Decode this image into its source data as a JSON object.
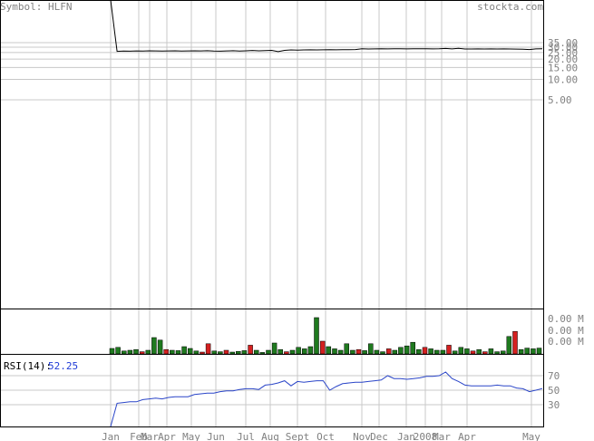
{
  "header": {
    "symbol_label": "Symbol: HLFN",
    "site": "stockta.com"
  },
  "colors": {
    "price_line": "#000000",
    "grid": "#c8c8c8",
    "border": "#000000",
    "volume_up": "#1f7a1f",
    "volume_down": "#d42020",
    "rsi_line": "#2a45c8",
    "label_gray": "#808080"
  },
  "chart_data": [
    {
      "type": "line",
      "panel": "price",
      "scale": "log",
      "y_ticks": [
        "35.00",
        "30.00",
        "25.00",
        "20.00",
        "15.00",
        "10.00",
        "5.00"
      ],
      "x_months": [
        "Jan",
        "Feb",
        "Mar",
        "Apr",
        "May",
        "Jun",
        "Jul",
        "Aug",
        "Sept",
        "Oct",
        "Nov",
        "Dec",
        "Jan",
        "2008",
        "Mar",
        "Apr",
        "May"
      ],
      "series": [
        {
          "x": [
            0,
            1,
            2,
            3,
            4,
            5,
            6,
            7,
            8,
            9,
            10,
            11,
            12,
            13,
            14,
            15,
            16,
            17,
            18,
            19,
            20,
            21,
            22,
            23,
            24,
            25,
            26,
            27,
            28,
            29,
            30,
            31,
            32,
            33,
            34,
            35,
            36,
            37,
            38,
            39,
            40,
            41,
            42,
            43,
            44,
            45,
            46,
            47,
            48,
            49,
            50,
            51,
            52,
            53,
            54,
            55,
            56,
            57,
            58,
            59,
            60,
            61,
            62,
            63,
            64,
            65,
            66,
            67
          ],
          "values": [
            200,
            26,
            26.3,
            26.2,
            26.4,
            26.3,
            26.5,
            26.4,
            26.3,
            26.4,
            26.5,
            26.3,
            26.4,
            26.5,
            26.4,
            26.6,
            26.3,
            26.2,
            26.4,
            26.6,
            26.3,
            26.5,
            26.8,
            26.5,
            26.7,
            26.9,
            25.8,
            26.9,
            27.3,
            27.2,
            27.3,
            27.4,
            27.3,
            27.4,
            27.5,
            27.4,
            27.6,
            27.6,
            27.7,
            28.4,
            28.2,
            28.3,
            28.4,
            28.3,
            28.5,
            28.4,
            28.3,
            28.4,
            28.5,
            28.4,
            28.3,
            28.4,
            28.7,
            28.3,
            28.9,
            28.2,
            28.2,
            28.3,
            28.2,
            28.3,
            28.2,
            28.3,
            28.2,
            28.1,
            27.9,
            27.7,
            28.3,
            28.5
          ]
        }
      ]
    },
    {
      "type": "bar",
      "panel": "volume",
      "y_ticks": [
        "0.00 M",
        "0.00 M",
        "0.00 M"
      ],
      "series": [
        {
          "values": [
            0.15,
            0.18,
            0.08,
            0.1,
            0.12,
            0.06,
            0.1,
            0.45,
            0.38,
            0.12,
            0.1,
            0.09,
            0.2,
            0.15,
            0.08,
            0.05,
            0.28,
            0.08,
            0.06,
            0.1,
            0.05,
            0.07,
            0.09,
            0.24,
            0.1,
            0.04,
            0.1,
            0.3,
            0.12,
            0.06,
            0.1,
            0.18,
            0.14,
            0.2,
            1.0,
            0.35,
            0.2,
            0.14,
            0.1,
            0.28,
            0.1,
            0.12,
            0.09,
            0.28,
            0.1,
            0.06,
            0.14,
            0.1,
            0.18,
            0.22,
            0.32,
            0.12,
            0.18,
            0.14,
            0.1,
            0.1,
            0.24,
            0.08,
            0.18,
            0.14,
            0.08,
            0.12,
            0.06,
            0.14,
            0.06,
            0.08,
            0.48,
            0.62,
            0.12,
            0.16,
            0.14,
            0.16
          ],
          "directions": [
            "up",
            "up",
            "up",
            "up",
            "up",
            "down",
            "up",
            "up",
            "up",
            "down",
            "up",
            "up",
            "up",
            "up",
            "up",
            "down",
            "down",
            "up",
            "up",
            "down",
            "up",
            "up",
            "up",
            "down",
            "up",
            "up",
            "up",
            "up",
            "up",
            "down",
            "up",
            "up",
            "up",
            "up",
            "up",
            "down",
            "up",
            "up",
            "up",
            "up",
            "up",
            "down",
            "up",
            "up",
            "up",
            "up",
            "down",
            "up",
            "up",
            "up",
            "up",
            "up",
            "down",
            "up",
            "up",
            "up",
            "down",
            "up",
            "up",
            "up",
            "down",
            "up",
            "down",
            "up",
            "up",
            "up",
            "up",
            "down",
            "up",
            "up",
            "up",
            "up"
          ]
        }
      ]
    },
    {
      "type": "line",
      "panel": "rsi",
      "label": "RSI(14):",
      "current_value": "52.25",
      "y_ticks": [
        "70",
        "50",
        "30"
      ],
      "ylim": [
        0,
        100
      ],
      "series": [
        {
          "x": [
            0,
            1,
            2,
            3,
            4,
            5,
            6,
            7,
            8,
            9,
            10,
            11,
            12,
            13,
            14,
            15,
            16,
            17,
            18,
            19,
            20,
            21,
            22,
            23,
            24,
            25,
            26,
            27,
            28,
            29,
            30,
            31,
            32,
            33,
            34,
            35,
            36,
            37,
            38,
            39,
            40,
            41,
            42,
            43,
            44,
            45,
            46,
            47,
            48,
            49,
            50,
            51,
            52,
            53,
            54,
            55,
            56,
            57,
            58,
            59,
            60,
            61,
            62,
            63,
            64,
            65,
            66,
            67
          ],
          "values": [
            0,
            32,
            33,
            34,
            34,
            37,
            38,
            39,
            38,
            40,
            41,
            41,
            41,
            44,
            45,
            46,
            46,
            48,
            49,
            49,
            51,
            52,
            52,
            51,
            57,
            58,
            60,
            63,
            56,
            62,
            61,
            62,
            63,
            63,
            50,
            55,
            59,
            60,
            61,
            61,
            62,
            63,
            64,
            70,
            66,
            66,
            65,
            66,
            67,
            69,
            69,
            70,
            75,
            66,
            62,
            57,
            56,
            56,
            56,
            56,
            57,
            56,
            56,
            53,
            52,
            48,
            50,
            52.25
          ]
        }
      ]
    }
  ]
}
